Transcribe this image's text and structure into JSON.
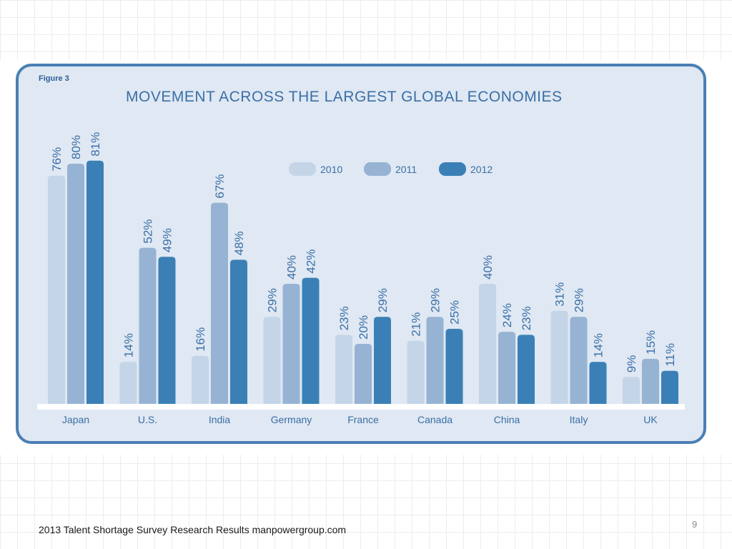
{
  "figure_label": "Figure 3",
  "footer_text": "2013 Talent Shortage Survey Research Results manpowergroup.com",
  "page_number": "9",
  "colors": {
    "2010": "#c5d5e8",
    "2011": "#97b3d3",
    "2012": "#3a80b6",
    "frame": "#4a7fb3",
    "panel": "#dfe8f3",
    "text": "#3b6fa6"
  },
  "chart_data": {
    "type": "bar",
    "title": "MOVEMENT ACROSS THE LARGEST GLOBAL ECONOMIES",
    "xlabel": "",
    "ylabel": "",
    "ylim": [
      0,
      100
    ],
    "grid": false,
    "legend_position": "top-center",
    "value_suffix": "%",
    "categories": [
      "Japan",
      "U.S.",
      "India",
      "Germany",
      "France",
      "Canada",
      "China",
      "Italy",
      "UK"
    ],
    "series": [
      {
        "name": "2010",
        "values": [
          76,
          14,
          16,
          29,
          23,
          21,
          40,
          31,
          9
        ]
      },
      {
        "name": "2011",
        "values": [
          80,
          52,
          67,
          40,
          20,
          29,
          24,
          29,
          15
        ]
      },
      {
        "name": "2012",
        "values": [
          81,
          49,
          48,
          42,
          29,
          25,
          23,
          14,
          11
        ]
      }
    ]
  }
}
